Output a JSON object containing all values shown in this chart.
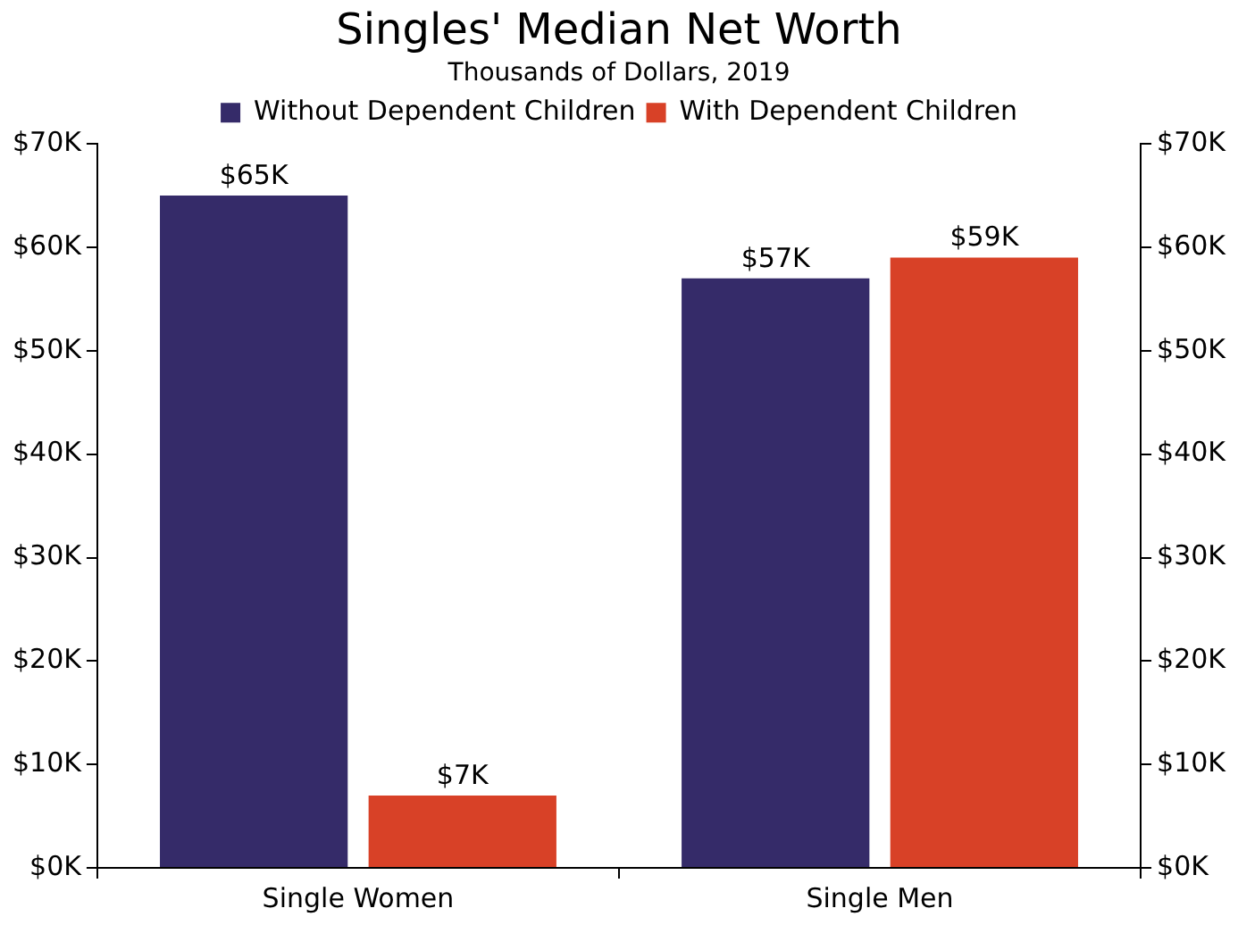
{
  "chart_data": {
    "type": "bar",
    "title": "Singles' Median Net Worth",
    "subtitle": "Thousands of Dollars, 2019",
    "categories": [
      "Single Women",
      "Single Men"
    ],
    "series": [
      {
        "name": "Without Dependent Children",
        "color": "#352b69",
        "values": [
          65,
          57
        ],
        "value_labels": [
          "$65K",
          "$57K"
        ]
      },
      {
        "name": "With Dependent Children",
        "color": "#d84127",
        "values": [
          7,
          59
        ],
        "value_labels": [
          "$7K",
          "$59K"
        ]
      }
    ],
    "ylim": [
      0,
      70
    ],
    "yticks": [
      {
        "value": 0,
        "label": "$0K"
      },
      {
        "value": 10,
        "label": "$10K"
      },
      {
        "value": 20,
        "label": "$20K"
      },
      {
        "value": 30,
        "label": "$30K"
      },
      {
        "value": 40,
        "label": "$40K"
      },
      {
        "value": 50,
        "label": "$50K"
      },
      {
        "value": 60,
        "label": "$60K"
      },
      {
        "value": 70,
        "label": "$70K"
      }
    ],
    "y2lim": [
      0,
      70
    ],
    "y2ticks": [
      {
        "value": 0,
        "label": "$0K"
      },
      {
        "value": 10,
        "label": "$10K"
      },
      {
        "value": 20,
        "label": "$20K"
      },
      {
        "value": 30,
        "label": "$30K"
      },
      {
        "value": 40,
        "label": "$40K"
      },
      {
        "value": 50,
        "label": "$50K"
      },
      {
        "value": 60,
        "label": "$60K"
      },
      {
        "value": 70,
        "label": "$70K"
      }
    ],
    "grid": false,
    "legend": "top"
  }
}
